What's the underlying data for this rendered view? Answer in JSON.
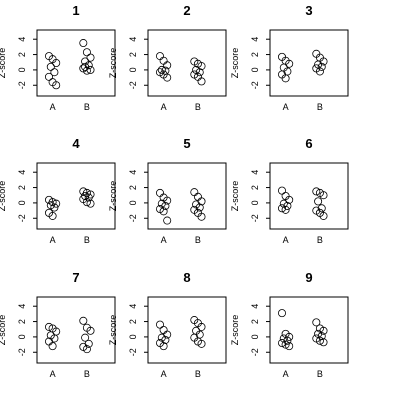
{
  "chart_data": [
    {
      "type": "scatter",
      "title": "1",
      "ylabel": "Z-score",
      "categories": [
        "A",
        "B"
      ],
      "yticks": [
        -2,
        0,
        2,
        4
      ],
      "ylim": [
        -3.4,
        5.2
      ],
      "series": [
        {
          "values": [
            1.8,
            1.4,
            0.9,
            0.4,
            -0.3,
            -0.9,
            -1.6,
            -2.0
          ]
        },
        {
          "values": [
            3.5,
            2.3,
            1.6,
            1.1,
            0.6,
            0.2,
            -0.1,
            0.0,
            0.4
          ]
        }
      ]
    },
    {
      "type": "scatter",
      "title": "2",
      "ylabel": "Z-score",
      "categories": [
        "A",
        "B"
      ],
      "yticks": [
        -2,
        0,
        2,
        4
      ],
      "ylim": [
        -3.4,
        5.2
      ],
      "series": [
        {
          "values": [
            1.8,
            1.2,
            0.6,
            0.0,
            -0.1,
            -0.3,
            -0.6,
            -1.0
          ]
        },
        {
          "values": [
            1.1,
            0.8,
            0.5,
            0.0,
            -0.3,
            -0.6,
            -0.9,
            -1.5
          ]
        }
      ]
    },
    {
      "type": "scatter",
      "title": "3",
      "ylabel": "Z-score",
      "categories": [
        "A",
        "B"
      ],
      "yticks": [
        -2,
        0,
        2,
        4
      ],
      "ylim": [
        -3.4,
        5.2
      ],
      "series": [
        {
          "values": [
            1.7,
            1.2,
            0.8,
            0.3,
            -0.2,
            -0.6,
            -1.1
          ]
        },
        {
          "values": [
            2.1,
            1.6,
            1.1,
            0.7,
            0.4,
            0.2,
            -0.2
          ]
        }
      ]
    },
    {
      "type": "scatter",
      "title": "4",
      "ylabel": "Z-score",
      "categories": [
        "A",
        "B"
      ],
      "yticks": [
        -2,
        0,
        2,
        4
      ],
      "ylim": [
        -3.4,
        5.2
      ],
      "series": [
        {
          "values": [
            0.4,
            0.1,
            -0.1,
            -0.3,
            -0.6,
            -1.3,
            -1.7
          ]
        },
        {
          "values": [
            1.5,
            1.3,
            1.1,
            0.9,
            0.7,
            0.5,
            0.1,
            -0.1
          ]
        }
      ]
    },
    {
      "type": "scatter",
      "title": "5",
      "ylabel": "Z-score",
      "categories": [
        "A",
        "B"
      ],
      "yticks": [
        -2,
        0,
        2,
        4
      ],
      "ylim": [
        -3.4,
        5.2
      ],
      "series": [
        {
          "values": [
            1.3,
            0.7,
            0.3,
            -0.1,
            -0.4,
            -0.8,
            -1.1,
            -2.3
          ]
        },
        {
          "values": [
            1.4,
            0.8,
            0.2,
            -0.2,
            -0.6,
            -0.9,
            -1.3,
            -1.8
          ]
        }
      ]
    },
    {
      "type": "scatter",
      "title": "6",
      "ylabel": "Z-score",
      "categories": [
        "A",
        "B"
      ],
      "yticks": [
        -2,
        0,
        2,
        4
      ],
      "ylim": [
        -3.4,
        5.2
      ],
      "series": [
        {
          "values": [
            1.6,
            0.9,
            0.4,
            -0.1,
            -0.4,
            -0.7,
            -0.9
          ]
        },
        {
          "values": [
            1.5,
            1.3,
            1.0,
            0.2,
            -0.7,
            -1.0,
            -1.3,
            -1.7
          ]
        }
      ]
    },
    {
      "type": "scatter",
      "title": "7",
      "ylabel": "Z-score",
      "categories": [
        "A",
        "B"
      ],
      "yticks": [
        -2,
        0,
        2,
        4
      ],
      "ylim": [
        -3.4,
        5.2
      ],
      "series": [
        {
          "values": [
            1.3,
            1.1,
            0.7,
            0.2,
            -0.2,
            -0.6,
            -1.2
          ]
        },
        {
          "values": [
            2.1,
            1.2,
            0.8,
            -0.1,
            -0.9,
            -1.3,
            -1.6
          ]
        }
      ]
    },
    {
      "type": "scatter",
      "title": "8",
      "ylabel": "Z-score",
      "categories": [
        "A",
        "B"
      ],
      "yticks": [
        -2,
        0,
        2,
        4
      ],
      "ylim": [
        -3.4,
        5.2
      ],
      "series": [
        {
          "values": [
            1.6,
            0.9,
            0.3,
            -0.1,
            -0.4,
            -0.8,
            -1.2
          ]
        },
        {
          "values": [
            2.2,
            1.8,
            1.3,
            0.8,
            0.3,
            -0.1,
            -0.6,
            -0.9
          ]
        }
      ]
    },
    {
      "type": "scatter",
      "title": "9",
      "ylabel": "Z-score",
      "categories": [
        "A",
        "B"
      ],
      "yticks": [
        -2,
        0,
        2,
        4
      ],
      "ylim": [
        -3.4,
        5.2
      ],
      "series": [
        {
          "values": [
            3.1,
            0.4,
            0.0,
            -0.2,
            -0.5,
            -0.8,
            -1.0,
            -1.2
          ]
        },
        {
          "values": [
            1.9,
            1.1,
            0.8,
            0.4,
            0.1,
            -0.2,
            -0.5,
            -0.7
          ]
        }
      ]
    }
  ]
}
